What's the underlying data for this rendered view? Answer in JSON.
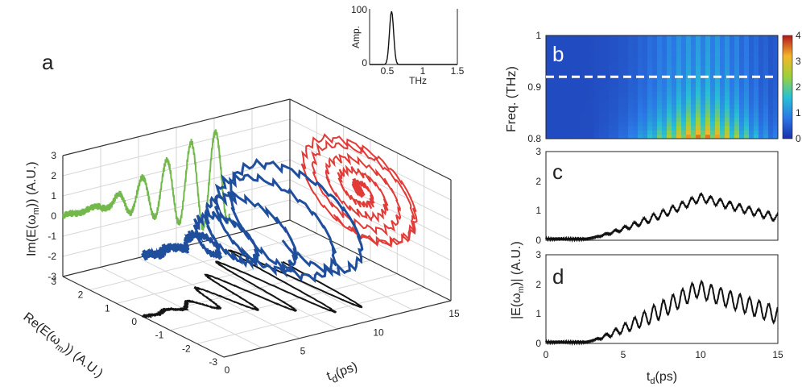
{
  "chart_data": [
    {
      "panel": "a",
      "type": "line",
      "xlabel": "t_d(ps)",
      "ylabel": "Re(E(ωm)) (A.U.)",
      "zlabel": "Im(E(ωm)) (A.U.)",
      "xlim": [
        0,
        15
      ],
      "ylim": [
        -3,
        3
      ],
      "zlim": [
        -3,
        3
      ],
      "x_ticks": [
        "0",
        "5",
        "10",
        "15"
      ],
      "y_ticks": [
        "3",
        "2",
        "1",
        "0",
        "-1",
        "-2",
        "-3"
      ],
      "z_ticks": [
        "3",
        "2",
        "1",
        "0",
        "-1",
        "-2",
        "-3"
      ],
      "grid": true,
      "series": [
        {
          "role": "projection onto Im-td wall",
          "color": "#72b84a"
        },
        {
          "role": "3D trajectory",
          "color": "#1f4f9c"
        },
        {
          "role": "projection onto Re-Im wall",
          "color": "#e23a36"
        },
        {
          "role": "projection onto Re-td floor",
          "color": "#151515"
        }
      ]
    },
    {
      "panel": "a-inset",
      "type": "line",
      "xlabel": "THz",
      "ylabel": "Amp.",
      "xlim": [
        0.3,
        1.5
      ],
      "ylim": [
        0,
        100
      ],
      "x_ticks": [
        "0.5",
        "1",
        "1.5"
      ],
      "y_ticks": [
        "100",
        "0"
      ],
      "peak_x": 0.6,
      "peak_y": 100
    },
    {
      "panel": "b",
      "type": "heatmap",
      "xlim": [
        0,
        15
      ],
      "ylim": [
        0.8,
        1.0
      ],
      "ylabel": "Freq. (THz)",
      "y_ticks": [
        "1",
        "0.9",
        "0.8"
      ],
      "colorbar_ticks": [
        "4",
        "3",
        "2",
        "1",
        "0"
      ],
      "colorbar_range": [
        0,
        4
      ],
      "dashed_line_freq": 0.92
    },
    {
      "panel": "c",
      "type": "line",
      "xlim": [
        0,
        15
      ],
      "ylim": [
        0,
        3
      ],
      "ylabel": "|E(ωm)| (A.U.)",
      "y_ticks": [
        "3",
        "2",
        "1",
        "0"
      ],
      "envelope": {
        "t_peak": 10,
        "peak": 1.45,
        "end": 0.75,
        "ripple_period_ps": 0.62,
        "ripple_amp": 0.12
      }
    },
    {
      "panel": "d",
      "type": "line",
      "xlim": [
        0,
        15
      ],
      "ylim": [
        0,
        3
      ],
      "xlabel": "t_d(ps)",
      "ylabel": "|E(ωm)| (A.U.)",
      "x_ticks": [
        "0",
        "5",
        "10",
        "15"
      ],
      "y_ticks": [
        "3",
        "2",
        "1",
        "0"
      ],
      "envelope": {
        "t_peak": 9.8,
        "peak": 1.85,
        "end": 0.95,
        "ripple_period_ps": 0.62,
        "ripple_amp": 0.28
      }
    }
  ],
  "labels": {
    "a": "a",
    "b": "b",
    "c": "c",
    "d": "d",
    "td_main": "t",
    "td_sub": "d",
    "td_unit": "(ps)",
    "im_pre": "Im(E(ω",
    "im_sub": "m",
    "im_post": ")) (A.U.)",
    "re_pre": "Re(E(ω",
    "re_sub": "m",
    "re_post": ")) (A.U.)",
    "abs_pre": "|E(ω",
    "abs_sub": "m",
    "abs_post": ")| (A.U.)",
    "freq": "Freq. (THz)",
    "inset_x": "THz",
    "inset_y": "Amp."
  }
}
